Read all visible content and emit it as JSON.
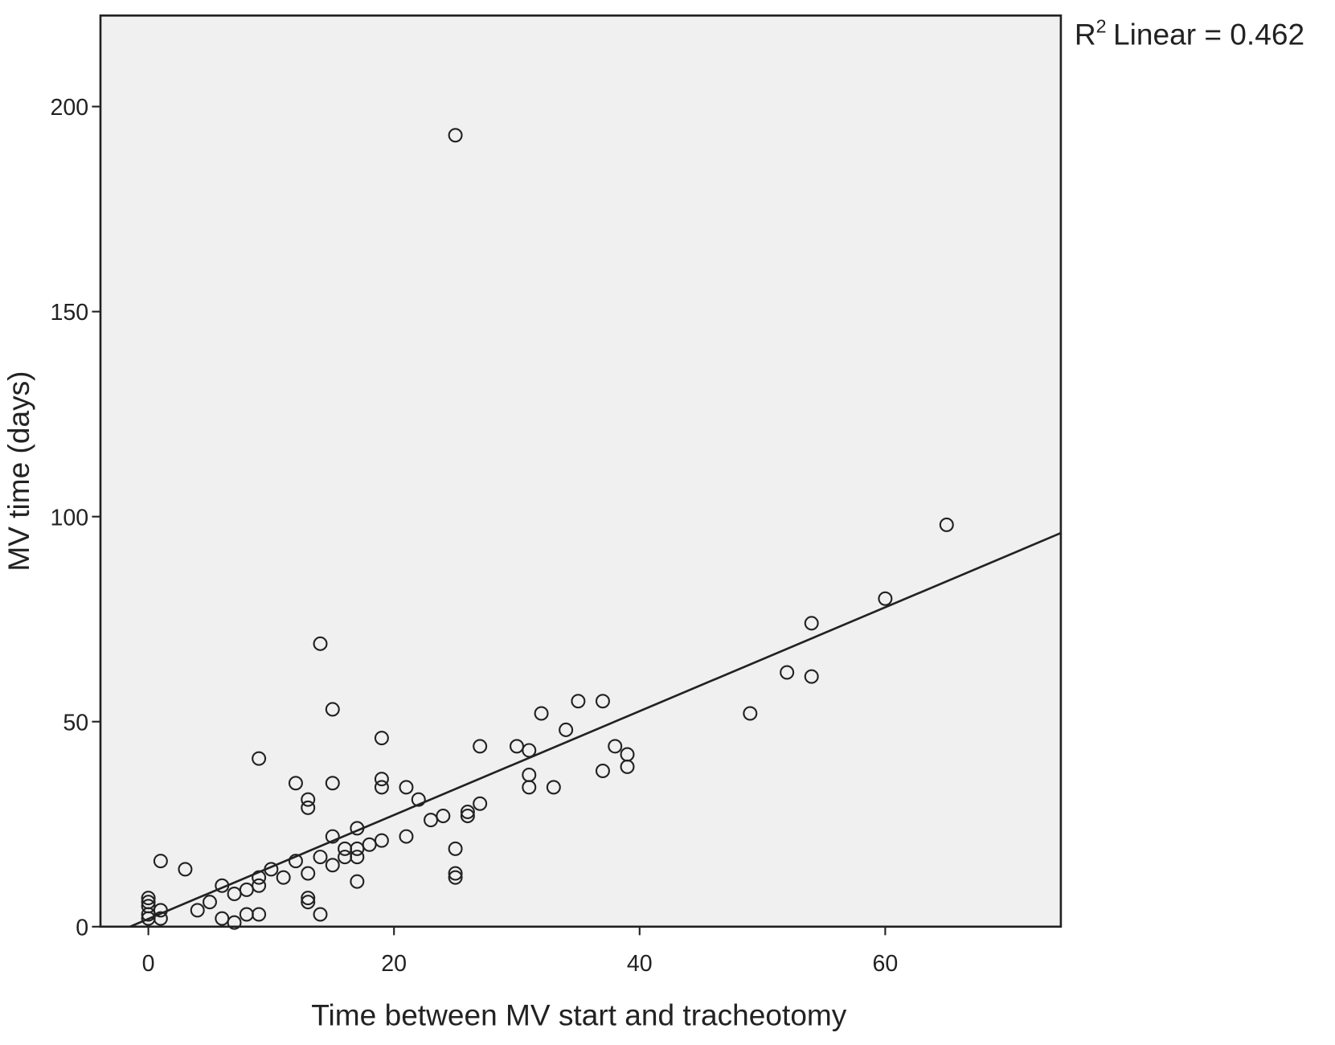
{
  "chart_data": {
    "type": "scatter",
    "xlabel": "Time between MV start and tracheotomy",
    "ylabel": "MV time (days)",
    "annotation": {
      "base": "R",
      "sup": "2",
      "text": "Linear = 0.462"
    },
    "xlim": [
      -3.9,
      74.3
    ],
    "ylim": [
      0,
      222.2
    ],
    "xticks": [
      0,
      20,
      40,
      60
    ],
    "yticks": [
      0,
      50,
      100,
      150,
      200
    ],
    "background": "#f0f0f0",
    "marker_color": "#222222",
    "series": [
      {
        "x": [
          25,
          65,
          60,
          54,
          52,
          54,
          49,
          14,
          15,
          35,
          37,
          32,
          34,
          19,
          9,
          27,
          30,
          31,
          38,
          39,
          39,
          37,
          31,
          31,
          33,
          12,
          15,
          19,
          19,
          21,
          22,
          13,
          13,
          27,
          26,
          26,
          24,
          23,
          17,
          15,
          21,
          19,
          18,
          25,
          16,
          17,
          16,
          17,
          14,
          15,
          12,
          1,
          3,
          10,
          25,
          25,
          13,
          11,
          9,
          17,
          9,
          6,
          8,
          7,
          5,
          13,
          13,
          0,
          0,
          0,
          0,
          0,
          1,
          1,
          4,
          8,
          9,
          14,
          6,
          7
        ],
        "y": [
          193,
          98,
          80,
          74,
          62,
          61,
          52,
          69,
          53,
          55,
          55,
          52,
          48,
          46,
          41,
          44,
          44,
          43,
          44,
          42,
          39,
          38,
          37,
          34,
          34,
          35,
          35,
          36,
          34,
          34,
          31,
          31,
          29,
          30,
          28,
          27,
          27,
          26,
          24,
          22,
          22,
          21,
          20,
          19,
          19,
          19,
          17,
          17,
          17,
          15,
          16,
          16,
          14,
          14,
          13,
          12,
          13,
          12,
          12,
          11,
          10,
          10,
          9,
          8,
          6,
          7,
          6,
          7,
          6,
          5,
          3,
          2,
          4,
          2,
          4,
          3,
          3,
          3,
          2,
          1
        ]
      }
    ],
    "fit": {
      "x": [
        -1.5,
        74.3
      ],
      "y": [
        0,
        96
      ]
    }
  }
}
